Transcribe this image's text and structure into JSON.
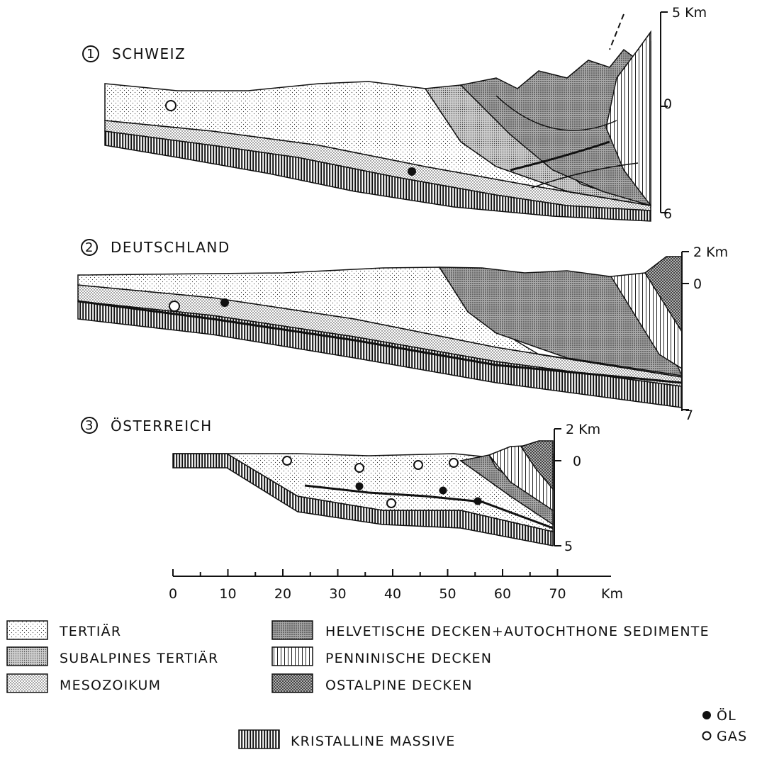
{
  "sections": [
    {
      "number": "1",
      "title": "SCHWEIZ",
      "scale": {
        "top": "5 Km",
        "mid": "0",
        "bottom": "6"
      }
    },
    {
      "number": "2",
      "title": "DEUTSCHLAND",
      "scale": {
        "top": "2 Km",
        "mid": "0",
        "bottom": "7"
      }
    },
    {
      "number": "3",
      "title": "ÖSTERREICH",
      "scale": {
        "top": "2 Km",
        "mid": "0",
        "bottom": "5"
      }
    }
  ],
  "distance_axis": {
    "ticks": [
      "0",
      "10",
      "20",
      "30",
      "40",
      "50",
      "60",
      "70"
    ],
    "unit": "Km"
  },
  "legend": {
    "tertiaer": "TERTIÄR",
    "subalpines": "SUBALPINES TERTIÄR",
    "mesozoikum": "MESOZOIKUM",
    "helvetische": "HELVETISCHE DECKEN+AUTOCHTHONE SEDIMENTE",
    "penninische": "PENNINISCHE DECKEN",
    "ostalpine": "OSTALPINE DECKEN",
    "kristalline": "KRISTALLINE MASSIVE",
    "oil": "ÖL",
    "gas": "GAS"
  }
}
